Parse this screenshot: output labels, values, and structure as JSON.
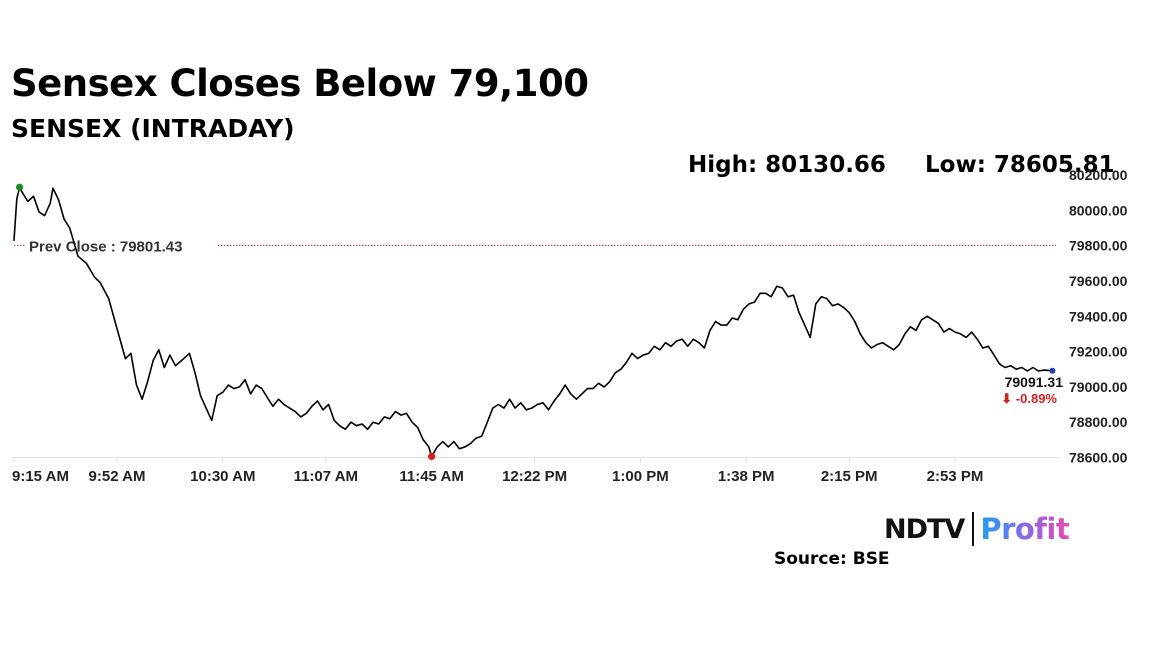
{
  "header": {
    "title": "Sensex Closes Below 79,100",
    "subtitle": "SENSEX (INTRADAY)",
    "high_text": "High: 80130.66",
    "low_text": "Low: 78605.81"
  },
  "footer": {
    "brand_ndtv": "NDTV",
    "brand_profit": "Profit",
    "source": "Source: BSE"
  },
  "colors": {
    "line": "#000000",
    "prev_close": "#b03030",
    "high_marker": "#1a8a1a",
    "low_marker": "#d62020",
    "last_marker": "#1f3fbf",
    "change": "#d62020"
  },
  "chart_data": {
    "type": "line",
    "title": "SENSEX (INTRADAY)",
    "xlabel": "",
    "ylabel": "",
    "x_ticks": [
      "9:15 AM",
      "9:52 AM",
      "10:30 AM",
      "11:07 AM",
      "11:45 AM",
      "12:22 PM",
      "1:00 PM",
      "1:38 PM",
      "2:15 PM",
      "2:53 PM"
    ],
    "x_tick_minutes": [
      0,
      37,
      75,
      112,
      150,
      187,
      225,
      263,
      300,
      338
    ],
    "xlim_minutes": [
      0,
      375
    ],
    "y_ticks": [
      "78600.00",
      "78800.00",
      "79000.00",
      "79200.00",
      "79400.00",
      "79600.00",
      "79800.00",
      "80000.00",
      "80200.00"
    ],
    "ylim": [
      78600,
      80200
    ],
    "prev_close": 79801.43,
    "prev_close_label": "Prev Close : 79801.43",
    "high": 80130.66,
    "high_minute": 2,
    "low": 78605.81,
    "low_minute": 150,
    "last_value": 79091.31,
    "last_label": "79091.31",
    "change_label": "⬇ -0.89%",
    "series": [
      {
        "name": "SENSEX",
        "points": [
          [
            0,
            79830
          ],
          [
            1,
            80065
          ],
          [
            2,
            80130
          ],
          [
            3,
            80100
          ],
          [
            5,
            80050
          ],
          [
            7,
            80080
          ],
          [
            9,
            79990
          ],
          [
            11,
            79970
          ],
          [
            13,
            80040
          ],
          [
            14,
            80125
          ],
          [
            16,
            80060
          ],
          [
            18,
            79950
          ],
          [
            20,
            79900
          ],
          [
            23,
            79740
          ],
          [
            26,
            79700
          ],
          [
            29,
            79620
          ],
          [
            31,
            79590
          ],
          [
            34,
            79500
          ],
          [
            37,
            79330
          ],
          [
            40,
            79160
          ],
          [
            42,
            79190
          ],
          [
            44,
            79010
          ],
          [
            46,
            78930
          ],
          [
            48,
            79030
          ],
          [
            50,
            79150
          ],
          [
            52,
            79210
          ],
          [
            54,
            79110
          ],
          [
            56,
            79180
          ],
          [
            58,
            79120
          ],
          [
            61,
            79160
          ],
          [
            63,
            79190
          ],
          [
            65,
            79080
          ],
          [
            67,
            78950
          ],
          [
            69,
            78880
          ],
          [
            71,
            78810
          ],
          [
            73,
            78950
          ],
          [
            75,
            78970
          ],
          [
            77,
            79010
          ],
          [
            79,
            78990
          ],
          [
            81,
            79000
          ],
          [
            83,
            79040
          ],
          [
            85,
            78960
          ],
          [
            87,
            79010
          ],
          [
            89,
            78990
          ],
          [
            91,
            78940
          ],
          [
            93,
            78890
          ],
          [
            95,
            78930
          ],
          [
            97,
            78900
          ],
          [
            99,
            78880
          ],
          [
            101,
            78860
          ],
          [
            103,
            78830
          ],
          [
            105,
            78850
          ],
          [
            107,
            78890
          ],
          [
            109,
            78920
          ],
          [
            111,
            78870
          ],
          [
            113,
            78900
          ],
          [
            115,
            78810
          ],
          [
            117,
            78780
          ],
          [
            119,
            78760
          ],
          [
            121,
            78800
          ],
          [
            123,
            78780
          ],
          [
            125,
            78790
          ],
          [
            127,
            78760
          ],
          [
            129,
            78800
          ],
          [
            131,
            78790
          ],
          [
            133,
            78830
          ],
          [
            135,
            78820
          ],
          [
            137,
            78860
          ],
          [
            139,
            78840
          ],
          [
            141,
            78850
          ],
          [
            143,
            78800
          ],
          [
            145,
            78770
          ],
          [
            147,
            78700
          ],
          [
            149,
            78660
          ],
          [
            150,
            78605
          ],
          [
            152,
            78660
          ],
          [
            154,
            78690
          ],
          [
            156,
            78660
          ],
          [
            158,
            78690
          ],
          [
            160,
            78650
          ],
          [
            162,
            78660
          ],
          [
            164,
            78680
          ],
          [
            166,
            78710
          ],
          [
            168,
            78720
          ],
          [
            170,
            78800
          ],
          [
            172,
            78880
          ],
          [
            174,
            78900
          ],
          [
            176,
            78880
          ],
          [
            178,
            78930
          ],
          [
            180,
            78880
          ],
          [
            182,
            78910
          ],
          [
            184,
            78870
          ],
          [
            186,
            78880
          ],
          [
            188,
            78900
          ],
          [
            190,
            78910
          ],
          [
            192,
            78870
          ],
          [
            194,
            78920
          ],
          [
            196,
            78960
          ],
          [
            198,
            79010
          ],
          [
            200,
            78960
          ],
          [
            202,
            78930
          ],
          [
            204,
            78960
          ],
          [
            206,
            78990
          ],
          [
            208,
            78990
          ],
          [
            210,
            79020
          ],
          [
            212,
            79000
          ],
          [
            214,
            79030
          ],
          [
            216,
            79080
          ],
          [
            218,
            79100
          ],
          [
            220,
            79140
          ],
          [
            222,
            79190
          ],
          [
            224,
            79160
          ],
          [
            226,
            79180
          ],
          [
            228,
            79190
          ],
          [
            230,
            79230
          ],
          [
            232,
            79210
          ],
          [
            234,
            79250
          ],
          [
            236,
            79230
          ],
          [
            238,
            79260
          ],
          [
            240,
            79270
          ],
          [
            242,
            79230
          ],
          [
            244,
            79270
          ],
          [
            246,
            79250
          ],
          [
            248,
            79220
          ],
          [
            250,
            79320
          ],
          [
            252,
            79370
          ],
          [
            254,
            79350
          ],
          [
            256,
            79350
          ],
          [
            258,
            79390
          ],
          [
            260,
            79380
          ],
          [
            262,
            79440
          ],
          [
            264,
            79470
          ],
          [
            266,
            79480
          ],
          [
            268,
            79530
          ],
          [
            270,
            79530
          ],
          [
            272,
            79510
          ],
          [
            274,
            79570
          ],
          [
            276,
            79560
          ],
          [
            278,
            79510
          ],
          [
            280,
            79520
          ],
          [
            282,
            79420
          ],
          [
            284,
            79350
          ],
          [
            286,
            79280
          ],
          [
            288,
            79470
          ],
          [
            290,
            79510
          ],
          [
            292,
            79500
          ],
          [
            294,
            79460
          ],
          [
            296,
            79470
          ],
          [
            298,
            79450
          ],
          [
            300,
            79420
          ],
          [
            302,
            79370
          ],
          [
            304,
            79300
          ],
          [
            306,
            79250
          ],
          [
            308,
            79220
          ],
          [
            310,
            79240
          ],
          [
            312,
            79250
          ],
          [
            314,
            79230
          ],
          [
            316,
            79210
          ],
          [
            318,
            79240
          ],
          [
            320,
            79300
          ],
          [
            322,
            79340
          ],
          [
            324,
            79320
          ],
          [
            326,
            79380
          ],
          [
            328,
            79400
          ],
          [
            330,
            79380
          ],
          [
            332,
            79360
          ],
          [
            334,
            79310
          ],
          [
            336,
            79330
          ],
          [
            338,
            79310
          ],
          [
            340,
            79300
          ],
          [
            342,
            79280
          ],
          [
            344,
            79310
          ],
          [
            346,
            79270
          ],
          [
            348,
            79220
          ],
          [
            350,
            79230
          ],
          [
            352,
            79180
          ],
          [
            354,
            79130
          ],
          [
            356,
            79110
          ],
          [
            358,
            79120
          ],
          [
            360,
            79100
          ],
          [
            362,
            79110
          ],
          [
            364,
            79090
          ],
          [
            366,
            79110
          ],
          [
            368,
            79090
          ],
          [
            370,
            79095
          ],
          [
            373,
            79091
          ]
        ]
      }
    ]
  }
}
